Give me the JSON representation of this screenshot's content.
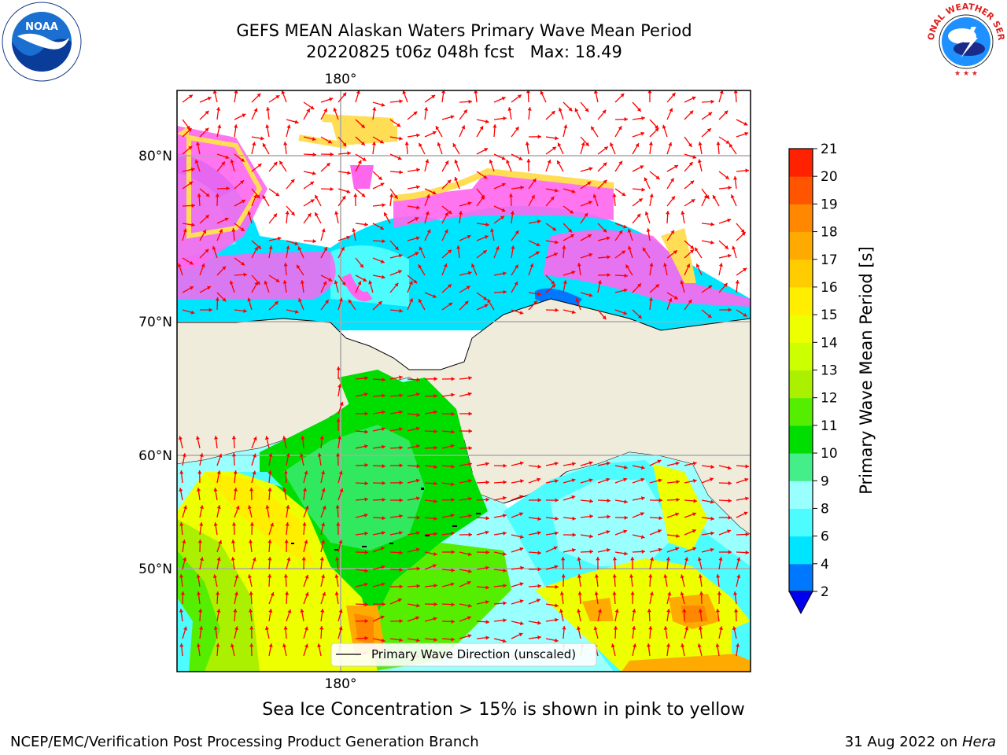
{
  "title": {
    "line1": "GEFS MEAN Alaskan Waters Primary Wave Mean Period",
    "line2": "20220825 t06z 048h fcst   Max: 18.49"
  },
  "logos": {
    "left": "NOAA",
    "right_text": "NATIONAL WEATHER SERVICE"
  },
  "map": {
    "lon_label_top": "180°",
    "lon_label_bottom": "180°",
    "lat_labels": [
      "80°N",
      "70°N",
      "60°N",
      "50°N"
    ],
    "legend_label": "Primary Wave Direction (unscaled)",
    "colors": {
      "land": "#efecdc",
      "ice_pink": "#ff66ee",
      "ice_yellow": "#ffdd55",
      "arrow": "#ff0000",
      "grid": "#aaaaaa"
    }
  },
  "colorbar": {
    "label": "Primary Wave Mean Period [s]",
    "ticks": [
      "2",
      "4",
      "6",
      "8",
      "9",
      "10",
      "11",
      "12",
      "13",
      "14",
      "15",
      "16",
      "17",
      "18",
      "19",
      "20",
      "21"
    ],
    "colors": [
      "#0077ff",
      "#00e5ff",
      "#4dfcff",
      "#99ffff",
      "#44ee88",
      "#00dd00",
      "#55ee00",
      "#aaf000",
      "#ccff00",
      "#eeff00",
      "#ffee00",
      "#ffcc00",
      "#ffaa00",
      "#ff8800",
      "#ff5500",
      "#ff2200",
      "#ff0000"
    ],
    "under_color": "#0000ee"
  },
  "bottom_note": "Sea Ice Concentration > 15% is shown in pink to yellow",
  "footer": {
    "left": "NCEP/EMC/Verification Post Processing Product Generation Branch",
    "right_date": "31 Aug 2022 on ",
    "right_host": "Hera"
  }
}
